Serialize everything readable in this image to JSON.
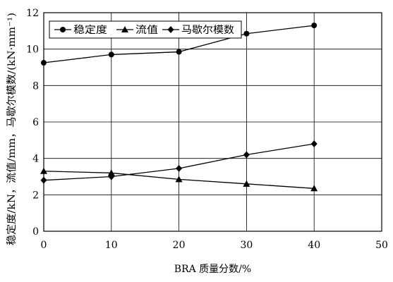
{
  "chart_data": {
    "type": "line",
    "xlabel": "BRA 质量分数/%",
    "ylabel": "稳定度/kN，流值/mm，马歇尔模数/(kN·mm⁻¹)",
    "xlim": [
      0,
      50
    ],
    "ylim": [
      0,
      12
    ],
    "x_ticks": [
      0,
      10,
      20,
      30,
      40,
      50
    ],
    "y_ticks": [
      0,
      2,
      4,
      6,
      8,
      10,
      12
    ],
    "grid": true,
    "legend_position": "top-left",
    "x": [
      0,
      10,
      20,
      30,
      40
    ],
    "series": [
      {
        "name": "稳定度",
        "marker": "circle",
        "values": [
          9.25,
          9.7,
          9.85,
          10.85,
          11.3
        ]
      },
      {
        "name": "流值",
        "marker": "triangle",
        "values": [
          3.3,
          3.2,
          2.85,
          2.6,
          2.35
        ]
      },
      {
        "name": "马歇尔模数",
        "marker": "diamond",
        "values": [
          2.8,
          3.0,
          3.45,
          4.2,
          4.8
        ]
      }
    ]
  }
}
